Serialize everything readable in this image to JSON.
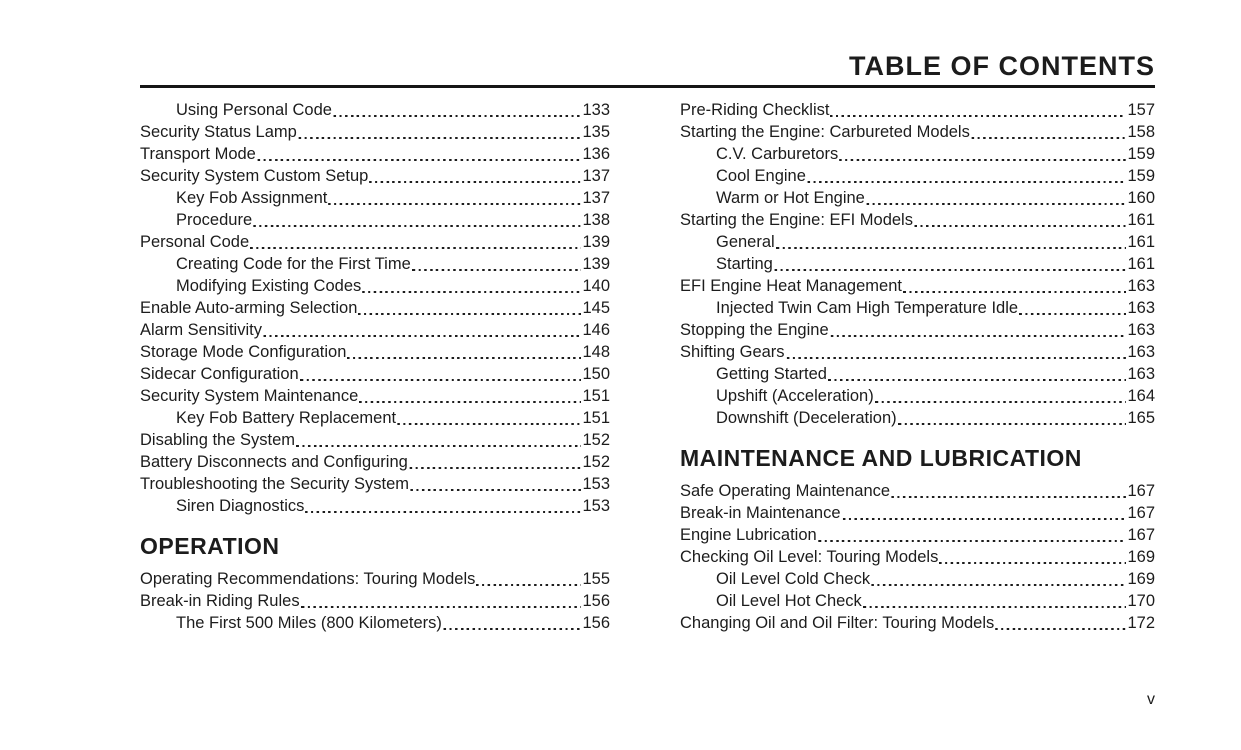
{
  "title": "TABLE OF CONTENTS",
  "footer": {
    "page_number": "v"
  },
  "columns": [
    {
      "blocks": [
        {
          "type": "entries",
          "items": [
            {
              "label": "Using Personal Code",
              "page": "133",
              "indent": true
            },
            {
              "label": "Security Status Lamp",
              "page": "135",
              "indent": false
            },
            {
              "label": "Transport Mode",
              "page": "136",
              "indent": false
            },
            {
              "label": "Security System Custom Setup",
              "page": "137",
              "indent": false
            },
            {
              "label": "Key Fob Assignment",
              "page": "137",
              "indent": true
            },
            {
              "label": "Procedure",
              "page": "138",
              "indent": true
            },
            {
              "label": "Personal Code",
              "page": "139",
              "indent": false
            },
            {
              "label": "Creating Code for the First Time",
              "page": "139",
              "indent": true
            },
            {
              "label": "Modifying Existing Codes",
              "page": "140",
              "indent": true
            },
            {
              "label": "Enable Auto-arming Selection",
              "page": "145",
              "indent": false
            },
            {
              "label": "Alarm Sensitivity",
              "page": "146",
              "indent": false
            },
            {
              "label": "Storage Mode Configuration",
              "page": "148",
              "indent": false
            },
            {
              "label": "Sidecar Configuration",
              "page": "150",
              "indent": false
            },
            {
              "label": "Security System Maintenance",
              "page": "151",
              "indent": false
            },
            {
              "label": "Key Fob Battery Replacement",
              "page": "151",
              "indent": true
            },
            {
              "label": "Disabling the System",
              "page": "152",
              "indent": false
            },
            {
              "label": "Battery Disconnects and Configuring",
              "page": "152",
              "indent": false
            },
            {
              "label": "Troubleshooting the Security System",
              "page": "153",
              "indent": false
            },
            {
              "label": "Siren Diagnostics",
              "page": "153",
              "indent": true
            }
          ]
        },
        {
          "type": "header",
          "text": "OPERATION"
        },
        {
          "type": "entries",
          "items": [
            {
              "label": "Operating Recommendations: Touring Models",
              "page": "155",
              "indent": false
            },
            {
              "label": "Break-in Riding Rules",
              "page": "156",
              "indent": false
            },
            {
              "label": "The First 500 Miles (800 Kilometers)",
              "page": "156",
              "indent": true
            }
          ]
        }
      ]
    },
    {
      "blocks": [
        {
          "type": "entries",
          "items": [
            {
              "label": "Pre-Riding Checklist",
              "page": "157",
              "indent": false
            },
            {
              "label": "Starting the Engine: Carbureted Models",
              "page": "158",
              "indent": false
            },
            {
              "label": "C.V. Carburetors",
              "page": "159",
              "indent": true
            },
            {
              "label": "Cool Engine",
              "page": "159",
              "indent": true
            },
            {
              "label": "Warm or Hot Engine",
              "page": "160",
              "indent": true
            },
            {
              "label": "Starting the Engine: EFI Models",
              "page": "161",
              "indent": false
            },
            {
              "label": "General",
              "page": "161",
              "indent": true
            },
            {
              "label": "Starting",
              "page": "161",
              "indent": true
            },
            {
              "label": "EFI Engine Heat Management",
              "page": "163",
              "indent": false
            },
            {
              "label": "Injected Twin Cam High Temperature Idle",
              "page": "163",
              "indent": true
            },
            {
              "label": "Stopping the Engine",
              "page": "163",
              "indent": false
            },
            {
              "label": "Shifting Gears",
              "page": "163",
              "indent": false
            },
            {
              "label": "Getting Started",
              "page": "163",
              "indent": true
            },
            {
              "label": "Upshift (Acceleration)",
              "page": "164",
              "indent": true
            },
            {
              "label": "Downshift (Deceleration)",
              "page": "165",
              "indent": true
            }
          ]
        },
        {
          "type": "header",
          "text": "MAINTENANCE AND LUBRICATION"
        },
        {
          "type": "entries",
          "items": [
            {
              "label": "Safe Operating Maintenance",
              "page": "167",
              "indent": false
            },
            {
              "label": "Break-in Maintenance",
              "page": "167",
              "indent": false
            },
            {
              "label": "Engine Lubrication",
              "page": "167",
              "indent": false
            },
            {
              "label": "Checking Oil Level: Touring Models",
              "page": "169",
              "indent": false
            },
            {
              "label": "Oil Level Cold Check",
              "page": "169",
              "indent": true
            },
            {
              "label": "Oil Level Hot Check",
              "page": "170",
              "indent": true
            },
            {
              "label": "Changing Oil and Oil Filter: Touring Models",
              "page": "172",
              "indent": false
            }
          ]
        }
      ]
    }
  ]
}
